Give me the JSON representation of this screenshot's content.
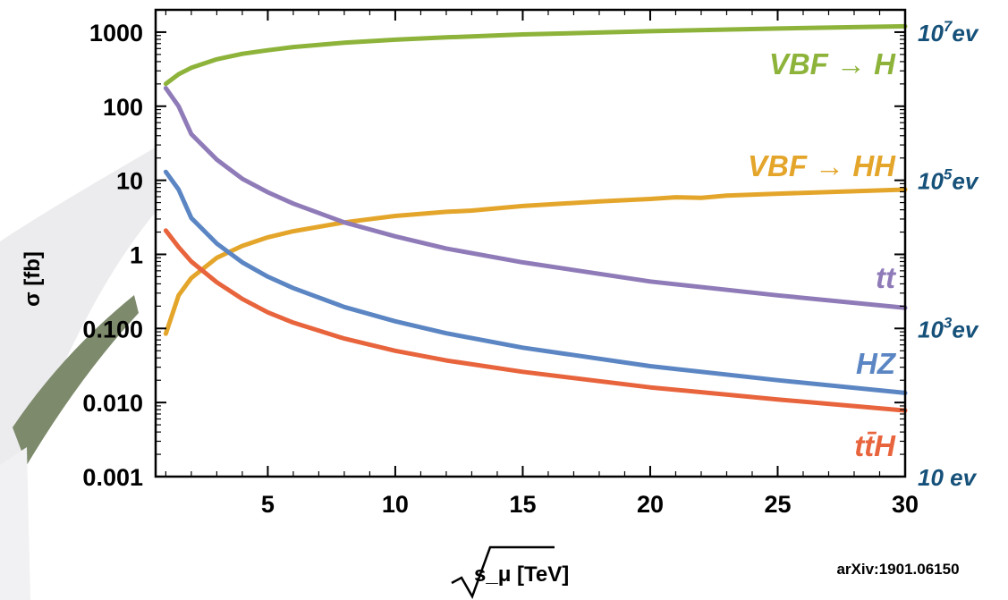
{
  "chart_data": {
    "type": "line",
    "xlabel": "s_μ [TeV]",
    "ylabel": "σ [fb]",
    "xlim": [
      0.6,
      30
    ],
    "ylim": [
      0.001,
      2000
    ],
    "yscale": "log",
    "x_ticks": [
      5,
      10,
      15,
      20,
      25,
      30
    ],
    "y_ticks": [
      {
        "value": 1000,
        "label": "1000"
      },
      {
        "value": 100,
        "label": "100"
      },
      {
        "value": 10,
        "label": "10"
      },
      {
        "value": 1,
        "label": "1"
      },
      {
        "value": 0.1,
        "label": "0.100"
      },
      {
        "value": 0.01,
        "label": "0.010"
      },
      {
        "value": 0.001,
        "label": "0.001"
      }
    ],
    "right_axis_ticks": [
      {
        "value": 1000,
        "base": "10",
        "exp": "7",
        "suffix": "ev"
      },
      {
        "value": 10,
        "base": "10",
        "exp": "5",
        "suffix": "ev"
      },
      {
        "value": 0.1,
        "base": "10",
        "exp": "3",
        "suffix": "ev"
      },
      {
        "value": 0.001,
        "base": "10",
        "exp": "",
        "suffix": " ev"
      }
    ],
    "grid": false,
    "series": [
      {
        "name": "VBF → H",
        "color": "#8db33a",
        "x": [
          1,
          1.5,
          2,
          3,
          4,
          5,
          6,
          8,
          10,
          12,
          15,
          20,
          25,
          30
        ],
        "y": [
          200,
          270,
          330,
          430,
          510,
          570,
          630,
          720,
          790,
          850,
          930,
          1030,
          1120,
          1200
        ]
      },
      {
        "name": "VBF → HH",
        "color": "#e4a52b",
        "x": [
          1,
          1.5,
          2,
          3,
          4,
          5,
          6,
          8,
          10,
          12,
          13,
          15,
          18,
          20,
          21,
          22,
          23,
          25,
          30
        ],
        "y": [
          0.085,
          0.28,
          0.48,
          0.9,
          1.3,
          1.7,
          2.05,
          2.7,
          3.3,
          3.75,
          3.9,
          4.5,
          5.2,
          5.6,
          5.9,
          5.8,
          6.2,
          6.6,
          7.5
        ]
      },
      {
        "name": "tt",
        "color": "#8f7bb8",
        "x": [
          1,
          1.5,
          2,
          3,
          4,
          5,
          6,
          8,
          10,
          12,
          15,
          20,
          25,
          30
        ],
        "y": [
          175,
          100,
          42,
          19,
          10.5,
          6.9,
          4.85,
          2.7,
          1.75,
          1.2,
          0.78,
          0.43,
          0.28,
          0.19
        ]
      },
      {
        "name": "HZ",
        "color": "#5b86c3",
        "x": [
          1,
          1.5,
          2,
          3,
          4,
          5,
          6,
          8,
          10,
          12,
          15,
          20,
          25,
          30
        ],
        "y": [
          13,
          7.5,
          3.1,
          1.4,
          0.78,
          0.5,
          0.35,
          0.195,
          0.125,
          0.086,
          0.055,
          0.031,
          0.02,
          0.0135
        ]
      },
      {
        "name": "tt̄H",
        "color": "#e8643d",
        "x": [
          1,
          1.5,
          2,
          3,
          4,
          5,
          6,
          8,
          10,
          12,
          15,
          20,
          25,
          30
        ],
        "y": [
          2.1,
          1.25,
          0.8,
          0.42,
          0.25,
          0.165,
          0.12,
          0.073,
          0.05,
          0.037,
          0.026,
          0.016,
          0.011,
          0.0078
        ]
      }
    ],
    "series_labels": [
      {
        "text": "VBF → H",
        "color": "#8db33a"
      },
      {
        "text": "VBF → HH",
        "color": "#e4a52b"
      },
      {
        "text": "tt",
        "color": "#8f7bb8"
      },
      {
        "text": "HZ",
        "color": "#5b86c3"
      },
      {
        "text": "tt̄H",
        "color": "#e8643d"
      }
    ],
    "annotations": [
      "arXiv:1901.06150"
    ]
  }
}
